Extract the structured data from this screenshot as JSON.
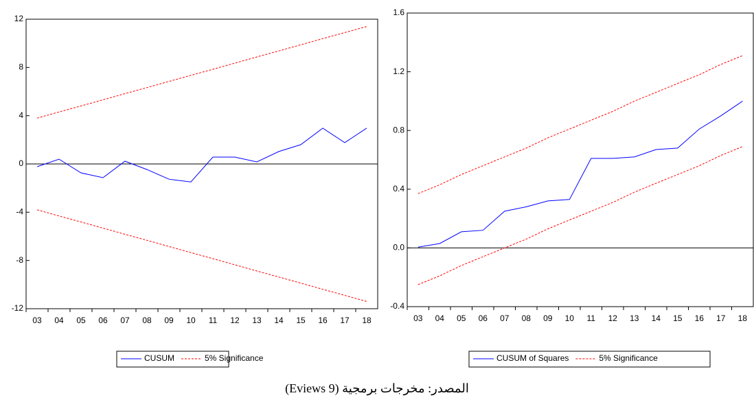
{
  "chart_data": [
    {
      "type": "line",
      "categories": [
        "03",
        "04",
        "05",
        "06",
        "07",
        "08",
        "09",
        "10",
        "11",
        "12",
        "13",
        "14",
        "15",
        "16",
        "17",
        "18"
      ],
      "ylim": [
        -12,
        12
      ],
      "yticks": [
        -12,
        -8,
        -4,
        0,
        4,
        8,
        12
      ],
      "series": [
        {
          "name": "CUSUM",
          "color": "#0000ff",
          "values": [
            -0.23,
            0.4,
            -0.74,
            -1.14,
            0.23,
            -0.46,
            -1.26,
            -1.49,
            0.57,
            0.57,
            0.17,
            1.03,
            1.6,
            2.97,
            1.77,
            2.97
          ]
        },
        {
          "name": "5% Significance",
          "color": "#ff0000",
          "dashed": true,
          "values": [
            3.8,
            4.31,
            4.81,
            5.32,
            5.83,
            6.33,
            6.84,
            7.35,
            7.85,
            8.36,
            8.87,
            9.37,
            9.88,
            10.39,
            10.89,
            11.4
          ],
          "lower_values": [
            -3.8,
            -4.31,
            -4.81,
            -5.32,
            -5.83,
            -6.33,
            -6.84,
            -7.35,
            -7.85,
            -8.36,
            -8.87,
            -9.37,
            -9.88,
            -10.39,
            -10.89,
            -11.4
          ]
        }
      ]
    },
    {
      "type": "line",
      "categories": [
        "03",
        "04",
        "05",
        "06",
        "07",
        "08",
        "09",
        "10",
        "11",
        "12",
        "13",
        "14",
        "15",
        "16",
        "17",
        "18"
      ],
      "ylim": [
        -0.4,
        1.6
      ],
      "yticks": [
        -0.4,
        {
          "value": 0,
          "label": "0.0"
        },
        0.4,
        0.8,
        1.2,
        1.6
      ],
      "series": [
        {
          "name": "CUSUM of Squares",
          "color": "#0000ff",
          "values": [
            0.005,
            0.03,
            0.11,
            0.12,
            0.25,
            0.28,
            0.32,
            0.33,
            0.61,
            0.61,
            0.62,
            0.67,
            0.68,
            0.81,
            0.9,
            1.0
          ]
        },
        {
          "name": "5% Significance",
          "color": "#ff0000",
          "dashed": true,
          "values": [
            0.37,
            0.43,
            0.5,
            0.56,
            0.62,
            0.68,
            0.75,
            0.81,
            0.87,
            0.93,
            1.0,
            1.06,
            1.12,
            1.18,
            1.25,
            1.31
          ],
          "lower_values": [
            -0.25,
            -0.19,
            -0.12,
            -0.06,
            0.0,
            0.06,
            0.13,
            0.19,
            0.25,
            0.31,
            0.38,
            0.44,
            0.5,
            0.56,
            0.63,
            0.69
          ]
        }
      ]
    }
  ],
  "caption": "المصدر: مخرجات برمجية (Eviews 9)"
}
